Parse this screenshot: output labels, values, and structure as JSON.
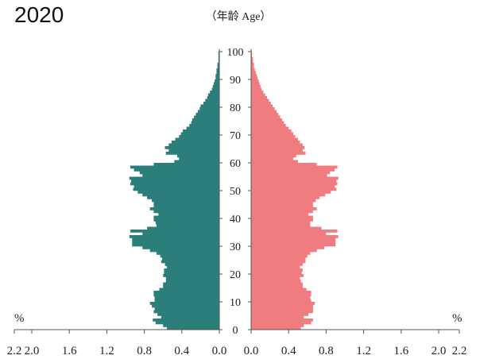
{
  "chart_data": {
    "type": "bar",
    "orientation": "horizontal-population-pyramid",
    "title": "2020",
    "y_axis_title": "（年龄 Age）",
    "unit_left": "%",
    "unit_right": "%",
    "x_ticks_left": [
      "2.2",
      "2.0",
      "1.6",
      "1.2",
      "0.8",
      "0.4",
      "0.0"
    ],
    "x_ticks_right": [
      "0.0",
      "0.4",
      "0.8",
      "1.2",
      "1.6",
      "2.0",
      "2.2"
    ],
    "age_ticks": [
      "0",
      "10",
      "20",
      "30",
      "40",
      "50",
      "60",
      "70",
      "80",
      "90",
      "100"
    ],
    "xlim": [
      0,
      2.2
    ],
    "ylim": [
      0,
      100
    ],
    "age_step": 1,
    "series": [
      {
        "side": "left",
        "color": "#2b7f7a",
        "values": [
          0.56,
          0.6,
          0.68,
          0.71,
          0.62,
          0.66,
          0.7,
          0.69,
          0.72,
          0.74,
          0.69,
          0.69,
          0.7,
          0.7,
          0.64,
          0.6,
          0.6,
          0.57,
          0.57,
          0.6,
          0.59,
          0.59,
          0.56,
          0.58,
          0.62,
          0.61,
          0.63,
          0.67,
          0.74,
          0.82,
          0.93,
          0.93,
          0.93,
          0.96,
          0.82,
          0.95,
          0.77,
          0.67,
          0.68,
          0.7,
          0.7,
          0.65,
          0.7,
          0.74,
          0.7,
          0.7,
          0.72,
          0.77,
          0.82,
          0.87,
          0.92,
          0.91,
          0.95,
          0.94,
          0.96,
          0.82,
          0.85,
          0.91,
          0.95,
          0.7,
          0.48,
          0.43,
          0.45,
          0.57,
          0.54,
          0.58,
          0.54,
          0.51,
          0.47,
          0.43,
          0.41,
          0.39,
          0.35,
          0.32,
          0.3,
          0.29,
          0.27,
          0.25,
          0.23,
          0.21,
          0.2,
          0.17,
          0.15,
          0.13,
          0.12,
          0.1,
          0.08,
          0.07,
          0.06,
          0.05,
          0.04,
          0.04,
          0.03,
          0.03,
          0.02,
          0.02,
          0.01,
          0.01,
          0.01,
          0.01,
          0.005
        ]
      },
      {
        "side": "right",
        "color": "#f07c80",
        "values": [
          0.53,
          0.56,
          0.64,
          0.66,
          0.56,
          0.61,
          0.66,
          0.66,
          0.66,
          0.68,
          0.64,
          0.63,
          0.64,
          0.64,
          0.59,
          0.55,
          0.55,
          0.53,
          0.52,
          0.56,
          0.54,
          0.55,
          0.52,
          0.55,
          0.58,
          0.58,
          0.6,
          0.63,
          0.7,
          0.78,
          0.9,
          0.9,
          0.9,
          0.93,
          0.8,
          0.92,
          0.75,
          0.63,
          0.63,
          0.66,
          0.66,
          0.61,
          0.66,
          0.7,
          0.66,
          0.66,
          0.69,
          0.73,
          0.79,
          0.85,
          0.91,
          0.89,
          0.92,
          0.91,
          0.93,
          0.81,
          0.84,
          0.89,
          0.92,
          0.7,
          0.5,
          0.45,
          0.48,
          0.58,
          0.55,
          0.57,
          0.55,
          0.52,
          0.5,
          0.47,
          0.45,
          0.43,
          0.4,
          0.37,
          0.35,
          0.33,
          0.31,
          0.29,
          0.27,
          0.25,
          0.23,
          0.21,
          0.19,
          0.17,
          0.15,
          0.13,
          0.11,
          0.1,
          0.09,
          0.08,
          0.07,
          0.06,
          0.05,
          0.04,
          0.03,
          0.03,
          0.02,
          0.02,
          0.01,
          0.01,
          0.005
        ]
      }
    ]
  }
}
